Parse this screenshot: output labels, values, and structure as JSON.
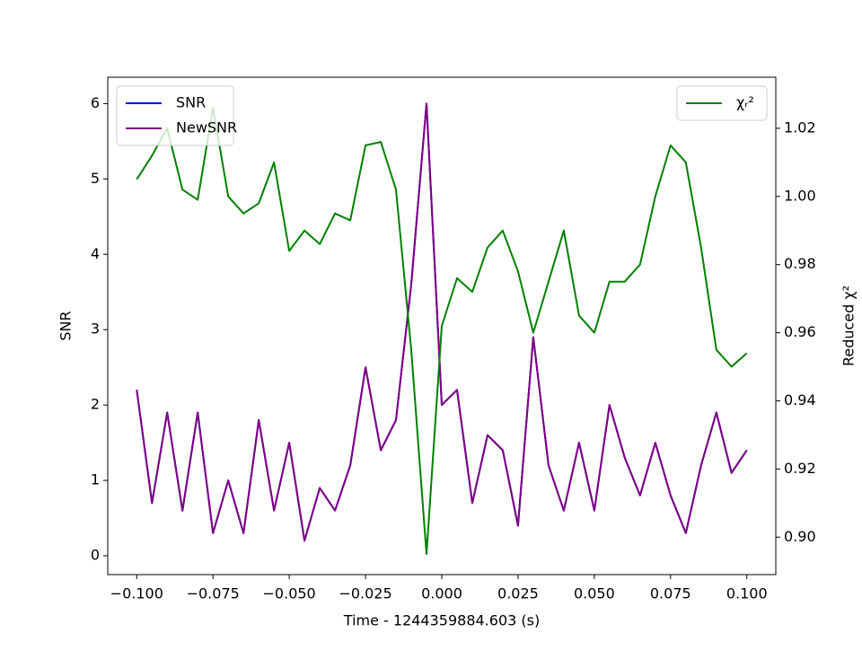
{
  "chart_data": {
    "type": "line",
    "x_label": "Time - 1244359884.603 (s)",
    "y_label": "SNR",
    "y2_label": "Reduced χ²",
    "x": [
      -0.1,
      -0.095,
      -0.09,
      -0.085,
      -0.08,
      -0.075,
      -0.07,
      -0.065,
      -0.06,
      -0.055,
      -0.05,
      -0.045,
      -0.04,
      -0.035,
      -0.03,
      -0.025,
      -0.02,
      -0.015,
      -0.01,
      -0.005,
      0,
      0.005,
      0.01,
      0.015,
      0.02,
      0.025,
      0.03,
      0.035,
      0.04,
      0.045,
      0.05,
      0.055,
      0.06,
      0.065,
      0.07,
      0.075,
      0.08,
      0.085,
      0.09,
      0.095,
      0.1
    ],
    "series": [
      {
        "name": "SNR",
        "color": "#0000ff",
        "values": [
          2.2,
          0.7,
          1.9,
          0.6,
          1.9,
          0.3,
          1.0,
          0.3,
          1.8,
          0.6,
          1.5,
          0.2,
          0.9,
          0.6,
          1.2,
          2.5,
          1.4,
          1.8,
          3.6,
          6.0,
          2.0,
          2.2,
          0.7,
          1.6,
          1.4,
          0.4,
          2.9,
          1.2,
          0.6,
          1.5,
          0.6,
          2.0,
          1.3,
          0.8,
          1.5,
          0.8,
          0.3,
          1.2,
          1.9,
          1.1,
          1.4
        ]
      },
      {
        "name": "NewSNR",
        "color": "#800080",
        "values": [
          2.2,
          0.7,
          1.9,
          0.6,
          1.9,
          0.3,
          1.0,
          0.3,
          1.8,
          0.6,
          1.5,
          0.2,
          0.9,
          0.6,
          1.2,
          2.5,
          1.4,
          1.8,
          3.6,
          6.0,
          2.0,
          2.2,
          0.7,
          1.6,
          1.4,
          0.4,
          2.9,
          1.2,
          0.6,
          1.5,
          0.6,
          2.0,
          1.3,
          0.8,
          1.5,
          0.8,
          0.3,
          1.2,
          1.9,
          1.1,
          1.4
        ]
      },
      {
        "name": "χᵣ²",
        "color": "#008000",
        "axis": "y2",
        "values": [
          1.005,
          1.012,
          1.02,
          1.002,
          0.999,
          1.026,
          1.0,
          0.995,
          0.998,
          1.01,
          0.984,
          0.99,
          0.986,
          0.995,
          0.993,
          1.015,
          1.016,
          1.002,
          0.955,
          0.895,
          0.962,
          0.976,
          0.972,
          0.985,
          0.99,
          0.978,
          0.96,
          0.975,
          0.99,
          0.965,
          0.96,
          0.975,
          0.975,
          0.98,
          1.0,
          1.015,
          1.01,
          0.985,
          0.955,
          0.95,
          0.954
        ]
      }
    ],
    "xlim": [
      -0.1095,
      0.1095
    ],
    "xticks": [
      {
        "value": -0.1,
        "label": "−0.100"
      },
      {
        "value": -0.075,
        "label": "−0.075"
      },
      {
        "value": -0.05,
        "label": "−0.050"
      },
      {
        "value": -0.025,
        "label": "−0.025"
      },
      {
        "value": 0,
        "label": "0.000"
      },
      {
        "value": 0.025,
        "label": "0.025"
      },
      {
        "value": 0.05,
        "label": "0.050"
      },
      {
        "value": 0.075,
        "label": "0.075"
      },
      {
        "value": 0.1,
        "label": "0.100"
      }
    ],
    "ylim": [
      -0.25,
      6.35
    ],
    "yticks": [
      0,
      1,
      2,
      3,
      4,
      5,
      6
    ],
    "y2lim": [
      0.889,
      1.035
    ],
    "y2ticks": [
      {
        "value": 0.9,
        "label": "0.90"
      },
      0.92,
      0.94,
      0.96,
      0.98,
      {
        "value": 1.0,
        "label": "1.00"
      },
      1.02
    ],
    "legend": "upper left",
    "legend2": "upper right"
  }
}
